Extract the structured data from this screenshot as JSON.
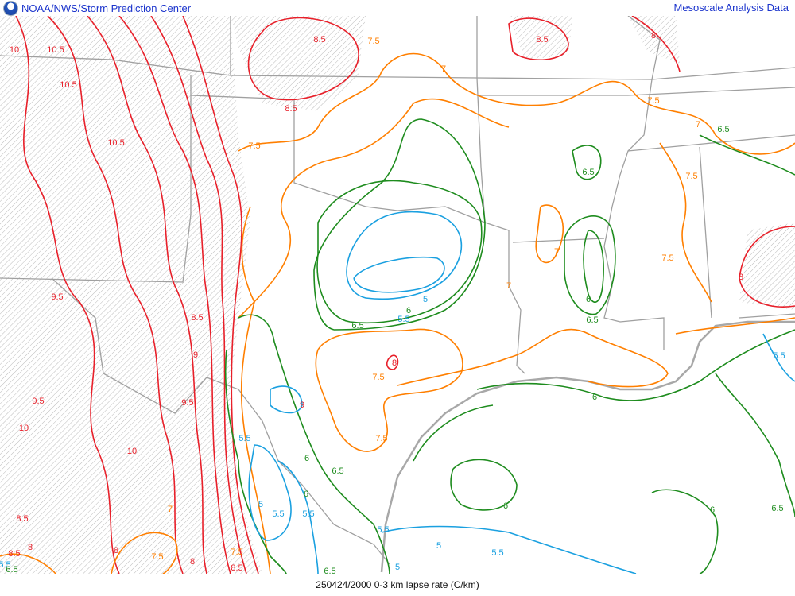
{
  "header": {
    "left_title": "NOAA/NWS/Storm Prediction Center",
    "right_title": "Mesoscale Analysis Data",
    "logo": "noaa-logo"
  },
  "footer": {
    "caption": "250424/2000 0-3 km lapse rate (C/km)"
  },
  "colors": {
    "red": "#e8202a",
    "orange": "#ff7f00",
    "green": "#1e8c1e",
    "cyan": "#1aa0e0",
    "border": "#a0a0a0",
    "header_text": "#1a33cc"
  },
  "contour_levels": [
    {
      "value": "5",
      "color": "#1aa0e0"
    },
    {
      "value": "5.5",
      "color": "#1aa0e0"
    },
    {
      "value": "6",
      "color": "#1e8c1e"
    },
    {
      "value": "6.5",
      "color": "#1e8c1e"
    },
    {
      "value": "7",
      "color": "#ff7f00"
    },
    {
      "value": "7.5",
      "color": "#ff7f00"
    },
    {
      "value": "8",
      "color": "#e8202a"
    },
    {
      "value": "8.5",
      "color": "#e8202a"
    },
    {
      "value": "9",
      "color": "#e8202a"
    },
    {
      "value": "9.5",
      "color": "#e8202a"
    },
    {
      "value": "10",
      "color": "#e8202a"
    },
    {
      "value": "10.5",
      "color": "#e8202a"
    }
  ],
  "contour_labels": [
    "10",
    "10.5",
    "10.5",
    "10.5",
    "8.5",
    "8.5",
    "8.5",
    "7.5",
    "7.5",
    "7",
    "8",
    "7.5",
    "7",
    "6.5",
    "6.5",
    "7.5",
    "7",
    "7",
    "7.5",
    "8",
    "6",
    "6.5",
    "9.5",
    "8.5",
    "9",
    "9.5",
    "9.5",
    "10",
    "10",
    "8.5",
    "8",
    "8",
    "7.5",
    "7",
    "8",
    "7.5",
    "8.5",
    "8.5",
    "9",
    "5.5",
    "6",
    "5.5",
    "5",
    "5.5",
    "6.5",
    "6",
    "5",
    "5.5",
    "8",
    "7.5",
    "7.5",
    "6",
    "6.5",
    "6.5",
    "5.5",
    "6",
    "5.5",
    "5",
    "5",
    "6",
    "6",
    "6.5",
    "5.5",
    "6.5",
    "5.5"
  ]
}
